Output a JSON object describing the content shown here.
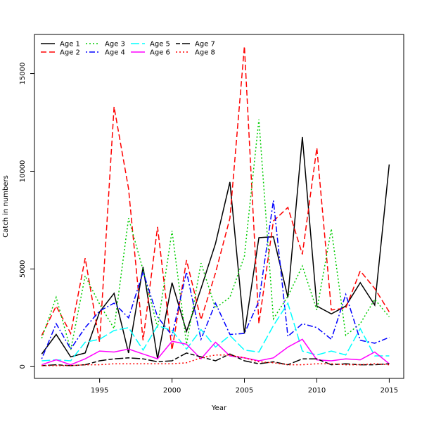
{
  "chart_data": {
    "type": "line",
    "title": "",
    "xlabel": "Year",
    "ylabel": "Catch in numbers",
    "xlim": [
      1990.5,
      2016
    ],
    "ylim": [
      -600,
      17000
    ],
    "xticks": [
      1995,
      2000,
      2005,
      2010,
      2015
    ],
    "yticks": [
      0,
      5000,
      10000,
      15000
    ],
    "grid": false,
    "legend_position": "top-left",
    "x": [
      1991,
      1992,
      1993,
      1994,
      1995,
      1996,
      1997,
      1998,
      1999,
      2000,
      2001,
      2002,
      2003,
      2004,
      2005,
      2006,
      2007,
      2008,
      2009,
      2010,
      2011,
      2012,
      2013,
      2014,
      2015
    ],
    "series": [
      {
        "name": "Age 1",
        "color": "#000000",
        "dash": "solid",
        "values": [
          650,
          1650,
          500,
          700,
          2800,
          3750,
          700,
          5100,
          400,
          4300,
          1800,
          4000,
          6300,
          9450,
          1700,
          6600,
          6650,
          3550,
          11750,
          3100,
          2700,
          3100,
          4300,
          3150,
          10350
        ]
      },
      {
        "name": "Age 2",
        "color": "#ff0000",
        "dash": "dashed",
        "values": [
          1600,
          3100,
          1700,
          5550,
          1250,
          13300,
          9100,
          1350,
          7150,
          850,
          5450,
          2400,
          4800,
          7600,
          16400,
          2200,
          7450,
          8150,
          5750,
          11200,
          2900,
          3000,
          4900,
          4000,
          2800
        ]
      },
      {
        "name": "Age 3",
        "color": "#00cc00",
        "dash": "dotted",
        "values": [
          1450,
          3550,
          850,
          4650,
          3200,
          1950,
          7600,
          4950,
          2000,
          6950,
          1150,
          5300,
          3000,
          3550,
          5650,
          12650,
          2450,
          3600,
          5150,
          2900,
          7050,
          1600,
          2200,
          3450,
          2550
        ]
      },
      {
        "name": "Age 4",
        "color": "#0000ff",
        "dash": "dotdash",
        "values": [
          400,
          2200,
          900,
          2000,
          2850,
          3250,
          2500,
          4850,
          2550,
          1600,
          4850,
          1400,
          3250,
          1650,
          1700,
          3350,
          8500,
          1550,
          2200,
          2000,
          1400,
          3700,
          1350,
          1200,
          1500
        ]
      },
      {
        "name": "Age 5",
        "color": "#00ffff",
        "dash": "longdash",
        "values": [
          300,
          350,
          300,
          1250,
          1400,
          1850,
          2000,
          850,
          2100,
          1850,
          900,
          1900,
          1000,
          1600,
          850,
          750,
          2100,
          3250,
          800,
          600,
          800,
          600,
          1950,
          550,
          550
        ]
      },
      {
        "name": "Age 6",
        "color": "#ff00ff",
        "dash": "solid",
        "values": [
          100,
          350,
          100,
          400,
          800,
          750,
          900,
          650,
          400,
          1300,
          1150,
          400,
          1250,
          550,
          450,
          300,
          450,
          1000,
          1400,
          350,
          300,
          400,
          350,
          750,
          150
        ]
      },
      {
        "name": "Age 7",
        "color": "#000000",
        "dash": "twodash",
        "values": [
          50,
          100,
          50,
          100,
          300,
          400,
          450,
          400,
          250,
          300,
          700,
          500,
          300,
          650,
          300,
          150,
          250,
          100,
          400,
          400,
          100,
          150,
          100,
          100,
          150
        ]
      },
      {
        "name": "Age 8",
        "color": "#ff0000",
        "dash": "dotted",
        "values": [
          50,
          50,
          50,
          100,
          100,
          150,
          150,
          150,
          150,
          150,
          200,
          450,
          600,
          600,
          450,
          250,
          200,
          100,
          100,
          150,
          150,
          100,
          100,
          150,
          100
        ]
      }
    ]
  }
}
